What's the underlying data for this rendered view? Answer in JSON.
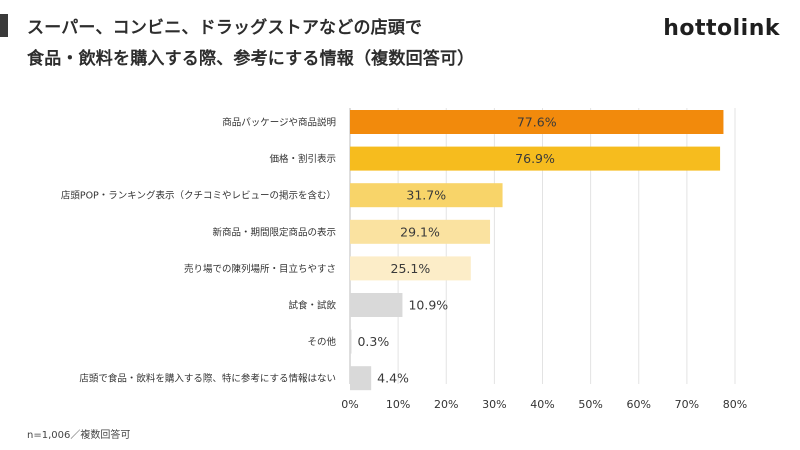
{
  "header": {
    "title_line1": "スーパー、コンビニ、ドラッグストアなどの店頭で",
    "title_line2": "食品・飲料を購入する際、参考にする情報（複数回答可）",
    "logo": "hottolink"
  },
  "footnote": "n=1,006／複数回答可",
  "chart_data": {
    "type": "bar",
    "orientation": "horizontal",
    "categories": [
      "商品パッケージや商品説明",
      "価格・割引表示",
      "店頭POP・ランキング表示（クチコミやレビューの掲示を含む）",
      "新商品・期間限定商品の表示",
      "売り場での陳列場所・目立ちやすさ",
      "試食・試飲",
      "その他",
      "店頭で食品・飲料を購入する際、特に参考にする情報はない"
    ],
    "values": [
      77.6,
      76.9,
      31.7,
      29.1,
      25.1,
      10.9,
      0.3,
      4.4
    ],
    "value_labels": [
      "77.6%",
      "76.9%",
      "31.7%",
      "29.1%",
      "25.1%",
      "10.9%",
      "0.3%",
      "4.4%"
    ],
    "colors": [
      "#f28a0c",
      "#f6bc1e",
      "#f8d469",
      "#fae2a0",
      "#fcedc8",
      "#d9d9d9",
      "#d9d9d9",
      "#d9d9d9"
    ],
    "xlim": [
      0,
      80
    ],
    "x_ticks": [
      "0%",
      "10%",
      "20%",
      "30%",
      "40%",
      "50%",
      "60%",
      "70%",
      "80%"
    ],
    "label_in_bar": [
      true,
      true,
      true,
      true,
      true,
      false,
      false,
      false
    ],
    "label_color_light": [
      true,
      true,
      false,
      false,
      false,
      false,
      false,
      false
    ],
    "grid": true,
    "light_label_color": "#ffffff",
    "dark_label_color": "#3a3a3a"
  }
}
